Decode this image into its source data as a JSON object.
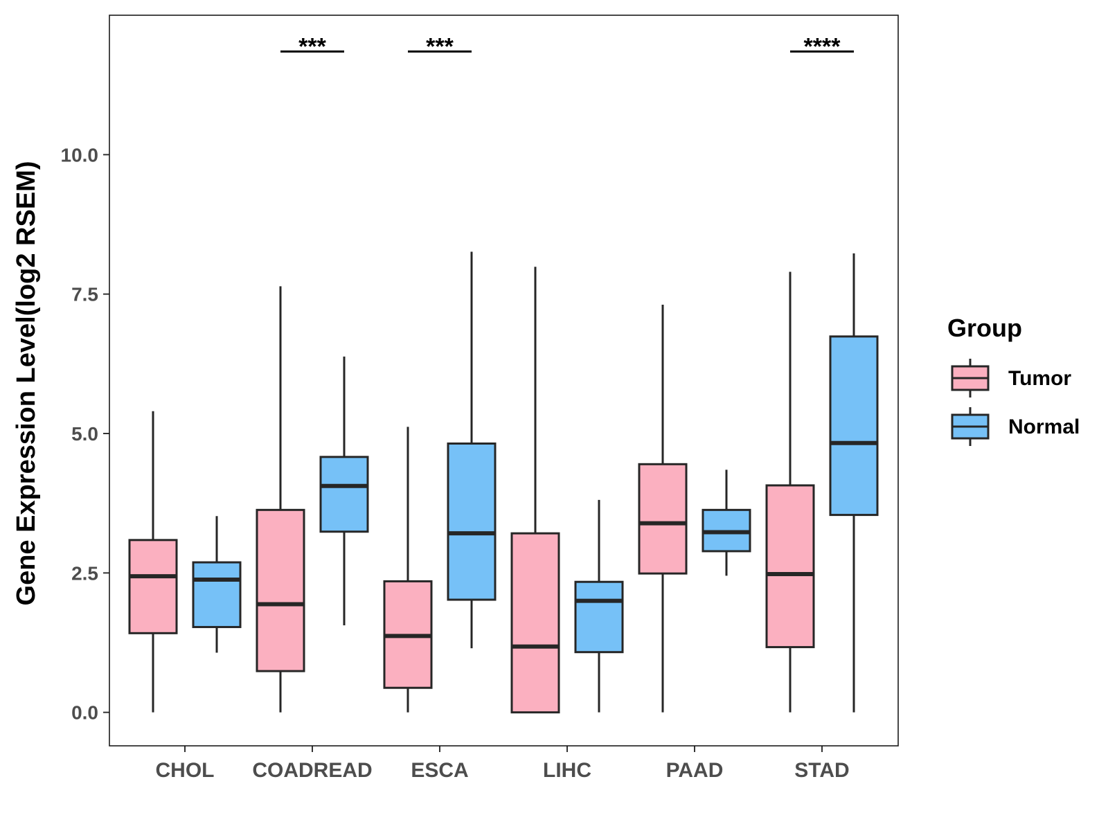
{
  "chart_data": {
    "type": "boxplot",
    "title": "",
    "xlabel": "",
    "ylabel": "Gene Expression Level(log2 RSEM)",
    "ylim": [
      -0.6,
      12.5
    ],
    "yticks": [
      0.0,
      2.5,
      5.0,
      7.5,
      10.0
    ],
    "ytick_labels": [
      "0.0",
      "2.5",
      "5.0",
      "7.5",
      "10.0"
    ],
    "categories": [
      "CHOL",
      "COADREAD",
      "ESCA",
      "LIHC",
      "PAAD",
      "STAD"
    ],
    "legend": {
      "title": "Group",
      "position": "right",
      "entries": [
        {
          "name": "Tumor",
          "color": "#fbb0c0"
        },
        {
          "name": "Normal",
          "color": "#76c1f7"
        }
      ]
    },
    "series": [
      {
        "name": "Tumor",
        "color": "#fbb0c0",
        "boxes": [
          {
            "min": 0.0,
            "q1": 1.42,
            "median": 2.44,
            "q3": 3.09,
            "max": 5.4
          },
          {
            "min": 0.0,
            "q1": 0.74,
            "median": 1.94,
            "q3": 3.63,
            "max": 7.64
          },
          {
            "min": 0.0,
            "q1": 0.44,
            "median": 1.37,
            "q3": 2.35,
            "max": 5.12
          },
          {
            "min": 0.0,
            "q1": 0.0,
            "median": 1.18,
            "q3": 3.21,
            "max": 7.99
          },
          {
            "min": 0.0,
            "q1": 2.49,
            "median": 3.39,
            "q3": 4.45,
            "max": 7.31
          },
          {
            "min": 0.0,
            "q1": 1.17,
            "median": 2.48,
            "q3": 4.07,
            "max": 7.9
          }
        ]
      },
      {
        "name": "Normal",
        "color": "#76c1f7",
        "boxes": [
          {
            "min": 1.07,
            "q1": 1.53,
            "median": 2.38,
            "q3": 2.69,
            "max": 3.52
          },
          {
            "min": 1.56,
            "q1": 3.24,
            "median": 4.06,
            "q3": 4.58,
            "max": 6.38
          },
          {
            "min": 1.15,
            "q1": 2.02,
            "median": 3.21,
            "q3": 4.82,
            "max": 8.26
          },
          {
            "min": 0.0,
            "q1": 1.08,
            "median": 2.0,
            "q3": 2.34,
            "max": 3.81
          },
          {
            "min": 2.45,
            "q1": 2.89,
            "median": 3.23,
            "q3": 3.63,
            "max": 4.35
          },
          {
            "min": 0.0,
            "q1": 3.54,
            "median": 4.83,
            "q3": 6.74,
            "max": 8.23
          }
        ]
      }
    ],
    "annotations": [
      {
        "category": "COADREAD",
        "label": "***",
        "y": 11.85
      },
      {
        "category": "ESCA",
        "label": "***",
        "y": 11.85
      },
      {
        "category": "STAD",
        "label": "****",
        "y": 11.85
      }
    ]
  }
}
